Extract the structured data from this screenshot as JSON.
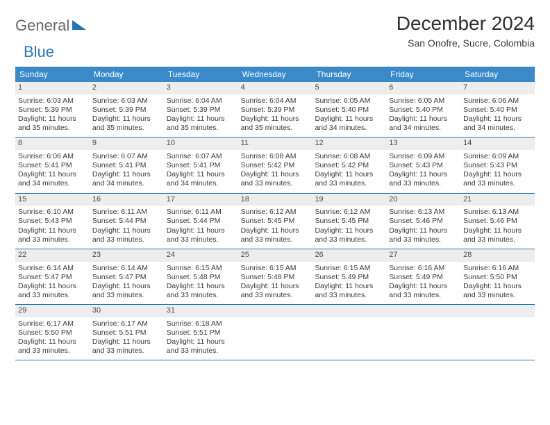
{
  "brand": {
    "word1": "General",
    "word2": "Blue"
  },
  "title": "December 2024",
  "location": "San Onofre, Sucre, Colombia",
  "colors": {
    "header_bg": "#3a89c9",
    "header_text": "#ffffff",
    "accent": "#2478b8",
    "daynum_bg": "#ededed",
    "text": "#3a3a3a",
    "page_bg": "#ffffff"
  },
  "typography": {
    "title_fontsize": 28,
    "subtitle_fontsize": 14,
    "weekday_fontsize": 12,
    "cell_fontsize": 10.5
  },
  "weekdays": [
    "Sunday",
    "Monday",
    "Tuesday",
    "Wednesday",
    "Thursday",
    "Friday",
    "Saturday"
  ],
  "weeks": [
    [
      {
        "day": "1",
        "sunrise": "Sunrise: 6:03 AM",
        "sunset": "Sunset: 5:39 PM",
        "daylight": "Daylight: 11 hours and 35 minutes."
      },
      {
        "day": "2",
        "sunrise": "Sunrise: 6:03 AM",
        "sunset": "Sunset: 5:39 PM",
        "daylight": "Daylight: 11 hours and 35 minutes."
      },
      {
        "day": "3",
        "sunrise": "Sunrise: 6:04 AM",
        "sunset": "Sunset: 5:39 PM",
        "daylight": "Daylight: 11 hours and 35 minutes."
      },
      {
        "day": "4",
        "sunrise": "Sunrise: 6:04 AM",
        "sunset": "Sunset: 5:39 PM",
        "daylight": "Daylight: 11 hours and 35 minutes."
      },
      {
        "day": "5",
        "sunrise": "Sunrise: 6:05 AM",
        "sunset": "Sunset: 5:40 PM",
        "daylight": "Daylight: 11 hours and 34 minutes."
      },
      {
        "day": "6",
        "sunrise": "Sunrise: 6:05 AM",
        "sunset": "Sunset: 5:40 PM",
        "daylight": "Daylight: 11 hours and 34 minutes."
      },
      {
        "day": "7",
        "sunrise": "Sunrise: 6:06 AM",
        "sunset": "Sunset: 5:40 PM",
        "daylight": "Daylight: 11 hours and 34 minutes."
      }
    ],
    [
      {
        "day": "8",
        "sunrise": "Sunrise: 6:06 AM",
        "sunset": "Sunset: 5:41 PM",
        "daylight": "Daylight: 11 hours and 34 minutes."
      },
      {
        "day": "9",
        "sunrise": "Sunrise: 6:07 AM",
        "sunset": "Sunset: 5:41 PM",
        "daylight": "Daylight: 11 hours and 34 minutes."
      },
      {
        "day": "10",
        "sunrise": "Sunrise: 6:07 AM",
        "sunset": "Sunset: 5:41 PM",
        "daylight": "Daylight: 11 hours and 34 minutes."
      },
      {
        "day": "11",
        "sunrise": "Sunrise: 6:08 AM",
        "sunset": "Sunset: 5:42 PM",
        "daylight": "Daylight: 11 hours and 33 minutes."
      },
      {
        "day": "12",
        "sunrise": "Sunrise: 6:08 AM",
        "sunset": "Sunset: 5:42 PM",
        "daylight": "Daylight: 11 hours and 33 minutes."
      },
      {
        "day": "13",
        "sunrise": "Sunrise: 6:09 AM",
        "sunset": "Sunset: 5:43 PM",
        "daylight": "Daylight: 11 hours and 33 minutes."
      },
      {
        "day": "14",
        "sunrise": "Sunrise: 6:09 AM",
        "sunset": "Sunset: 5:43 PM",
        "daylight": "Daylight: 11 hours and 33 minutes."
      }
    ],
    [
      {
        "day": "15",
        "sunrise": "Sunrise: 6:10 AM",
        "sunset": "Sunset: 5:43 PM",
        "daylight": "Daylight: 11 hours and 33 minutes."
      },
      {
        "day": "16",
        "sunrise": "Sunrise: 6:11 AM",
        "sunset": "Sunset: 5:44 PM",
        "daylight": "Daylight: 11 hours and 33 minutes."
      },
      {
        "day": "17",
        "sunrise": "Sunrise: 6:11 AM",
        "sunset": "Sunset: 5:44 PM",
        "daylight": "Daylight: 11 hours and 33 minutes."
      },
      {
        "day": "18",
        "sunrise": "Sunrise: 6:12 AM",
        "sunset": "Sunset: 5:45 PM",
        "daylight": "Daylight: 11 hours and 33 minutes."
      },
      {
        "day": "19",
        "sunrise": "Sunrise: 6:12 AM",
        "sunset": "Sunset: 5:45 PM",
        "daylight": "Daylight: 11 hours and 33 minutes."
      },
      {
        "day": "20",
        "sunrise": "Sunrise: 6:13 AM",
        "sunset": "Sunset: 5:46 PM",
        "daylight": "Daylight: 11 hours and 33 minutes."
      },
      {
        "day": "21",
        "sunrise": "Sunrise: 6:13 AM",
        "sunset": "Sunset: 5:46 PM",
        "daylight": "Daylight: 11 hours and 33 minutes."
      }
    ],
    [
      {
        "day": "22",
        "sunrise": "Sunrise: 6:14 AM",
        "sunset": "Sunset: 5:47 PM",
        "daylight": "Daylight: 11 hours and 33 minutes."
      },
      {
        "day": "23",
        "sunrise": "Sunrise: 6:14 AM",
        "sunset": "Sunset: 5:47 PM",
        "daylight": "Daylight: 11 hours and 33 minutes."
      },
      {
        "day": "24",
        "sunrise": "Sunrise: 6:15 AM",
        "sunset": "Sunset: 5:48 PM",
        "daylight": "Daylight: 11 hours and 33 minutes."
      },
      {
        "day": "25",
        "sunrise": "Sunrise: 6:15 AM",
        "sunset": "Sunset: 5:48 PM",
        "daylight": "Daylight: 11 hours and 33 minutes."
      },
      {
        "day": "26",
        "sunrise": "Sunrise: 6:15 AM",
        "sunset": "Sunset: 5:49 PM",
        "daylight": "Daylight: 11 hours and 33 minutes."
      },
      {
        "day": "27",
        "sunrise": "Sunrise: 6:16 AM",
        "sunset": "Sunset: 5:49 PM",
        "daylight": "Daylight: 11 hours and 33 minutes."
      },
      {
        "day": "28",
        "sunrise": "Sunrise: 6:16 AM",
        "sunset": "Sunset: 5:50 PM",
        "daylight": "Daylight: 11 hours and 33 minutes."
      }
    ],
    [
      {
        "day": "29",
        "sunrise": "Sunrise: 6:17 AM",
        "sunset": "Sunset: 5:50 PM",
        "daylight": "Daylight: 11 hours and 33 minutes."
      },
      {
        "day": "30",
        "sunrise": "Sunrise: 6:17 AM",
        "sunset": "Sunset: 5:51 PM",
        "daylight": "Daylight: 11 hours and 33 minutes."
      },
      {
        "day": "31",
        "sunrise": "Sunrise: 6:18 AM",
        "sunset": "Sunset: 5:51 PM",
        "daylight": "Daylight: 11 hours and 33 minutes."
      },
      {
        "empty": true
      },
      {
        "empty": true
      },
      {
        "empty": true
      },
      {
        "empty": true
      }
    ]
  ]
}
